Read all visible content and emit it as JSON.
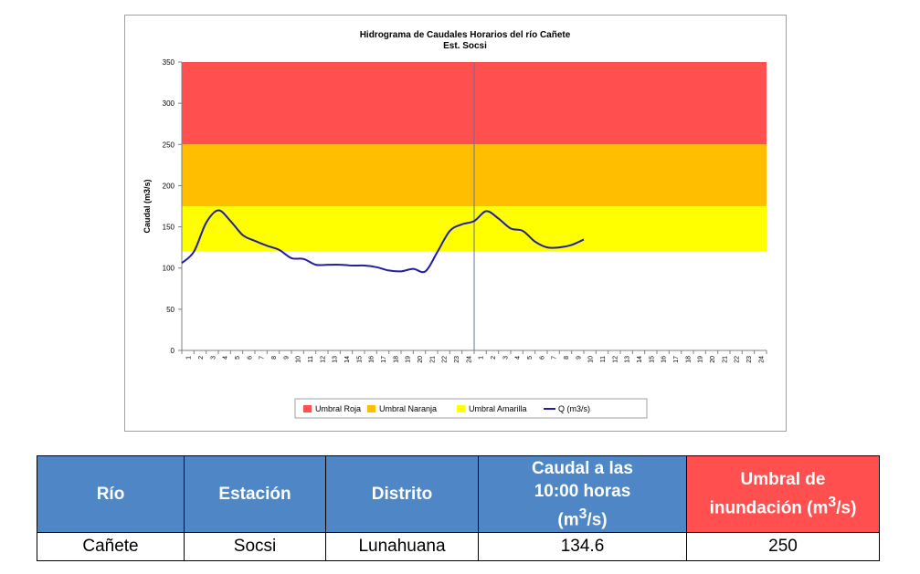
{
  "chart_data": {
    "type": "line",
    "title": "Hidrograma de Caudales Horarios del río Cañete",
    "subtitle": "Est. Socsi",
    "ylabel": "Caudal  (m3/s)",
    "xlabel": "",
    "ylim": [
      0,
      350
    ],
    "yticks": [
      0,
      50,
      100,
      150,
      200,
      250,
      300,
      350
    ],
    "x_tick_labels": [
      "1",
      "2",
      "3",
      "4",
      "5",
      "6",
      "7",
      "8",
      "9",
      "10",
      "11",
      "12",
      "13",
      "14",
      "15",
      "16",
      "17",
      "18",
      "19",
      "20",
      "21",
      "22",
      "23",
      "24",
      "1",
      "2",
      "3",
      "4",
      "5",
      "6",
      "7",
      "8",
      "9",
      "10",
      "11",
      "12",
      "13",
      "14",
      "15",
      "16",
      "17",
      "18",
      "19",
      "20",
      "21",
      "22",
      "23",
      "24"
    ],
    "day_separator_after_index": 23,
    "bands": [
      {
        "name": "Umbral Roja",
        "from": 250,
        "to": 350,
        "color": "#ff4f4f"
      },
      {
        "name": "Umbral Naranja",
        "from": 175,
        "to": 250,
        "color": "#ffbf00"
      },
      {
        "name": "Umbral Amarilla",
        "from": 120,
        "to": 175,
        "color": "#ffff00"
      }
    ],
    "series": [
      {
        "name": "Q (m3/s)",
        "color": "#1f1fa0",
        "values": [
          106,
          120,
          155,
          170,
          157,
          140,
          133,
          127,
          122,
          112,
          111,
          104,
          104,
          104,
          103,
          103,
          101,
          97,
          96,
          99,
          96,
          120,
          145,
          153,
          157,
          169,
          160,
          148,
          145,
          132,
          125,
          125,
          128,
          134.6
        ]
      }
    ],
    "legend_position": "bottom",
    "grid": false
  },
  "table": {
    "headers": [
      "Río",
      "Estación",
      "Distrito",
      "Caudal a las 10:00 horas (m³/s)",
      "Umbral de inundación (m³/s)"
    ],
    "header_lines": {
      "caudal": [
        "Caudal a las",
        "10:00 horas",
        "(m",
        "3",
        "/s)"
      ],
      "umbral": [
        "Umbral de",
        "inundación (m",
        "3",
        "/s)"
      ]
    },
    "row": [
      "Cañete",
      "Socsi",
      "Lunahuana",
      "134.6",
      "250"
    ]
  }
}
